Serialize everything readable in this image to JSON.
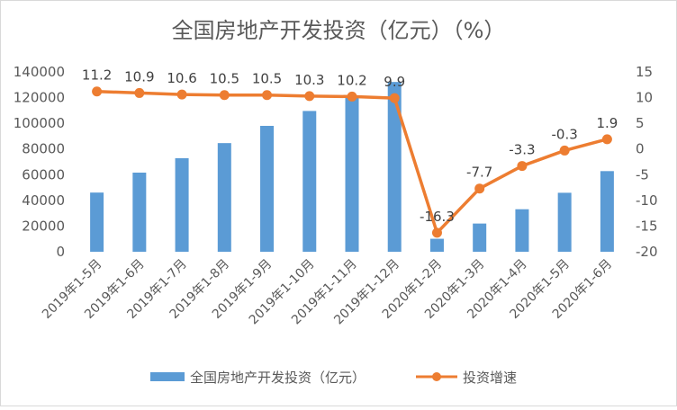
{
  "chart_data": {
    "type": "bar",
    "title": "全国房地产开发投资（亿元）（%）",
    "categories": [
      "2019年1-5月",
      "2019年1-6月",
      "2019年1-7月",
      "2019年1-8月",
      "2019年1-9月",
      "2019年1-10月",
      "2019年1-11月",
      "2019年1-12月",
      "2020年1-2月",
      "2020年1-3月",
      "2020年1-4月",
      "2020年1-5月",
      "2020年1-6月"
    ],
    "series": [
      {
        "name": "全国房地产开发投资（亿元）",
        "type": "bar",
        "axis": "left",
        "color": "#5B9BD5",
        "values": [
          46075,
          61609,
          72843,
          84589,
          98008,
          109603,
          121265,
          132194,
          10115,
          21963,
          33103,
          45920,
          62780
        ]
      },
      {
        "name": "投资增速",
        "type": "line",
        "axis": "right",
        "color": "#ED7D31",
        "values": [
          11.2,
          10.9,
          10.6,
          10.5,
          10.5,
          10.3,
          10.2,
          9.9,
          -16.3,
          -7.7,
          -3.3,
          -0.3,
          1.9
        ],
        "labels": [
          "11.2",
          "10.9",
          "10.6",
          "10.5",
          "10.5",
          "10.3",
          "10.2",
          "9.9",
          "-16.3",
          "-7.7",
          "-3.3",
          "-0.3",
          "1.9"
        ]
      }
    ],
    "y_left": {
      "min": 0,
      "max": 140000,
      "step": 20000
    },
    "y_right": {
      "min": -20,
      "max": 15,
      "step": 5
    },
    "legend_position": "bottom",
    "grid": false
  }
}
